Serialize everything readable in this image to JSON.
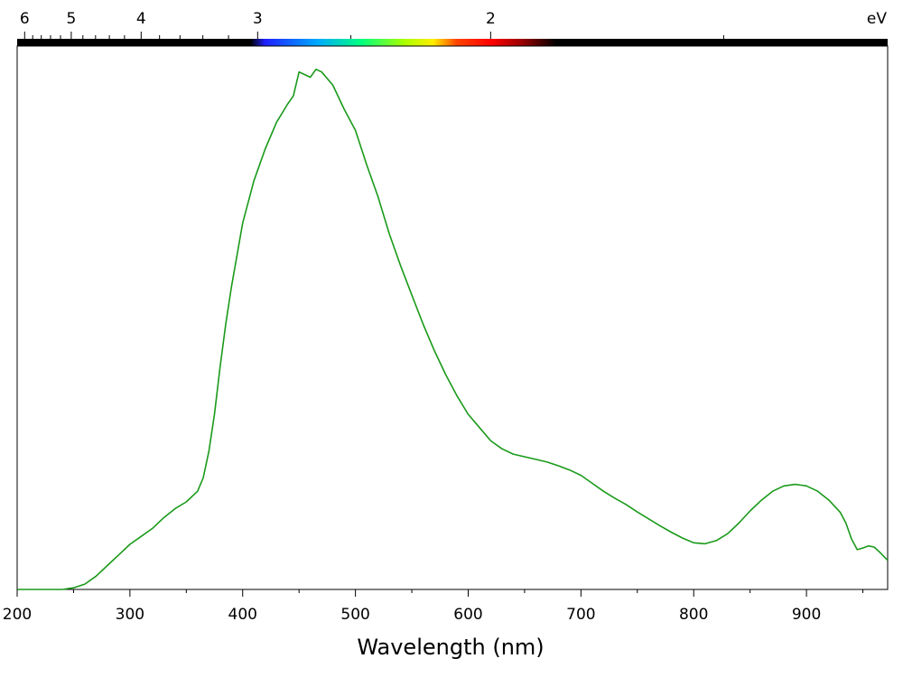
{
  "chart_data": {
    "type": "line",
    "title": "",
    "xlabel": "Wavelength (nm)",
    "ylabel": "",
    "xlim": [
      200,
      972
    ],
    "ylim": [
      0,
      1
    ],
    "grid": false,
    "legend": "none",
    "x_ticks": [
      200,
      300,
      400,
      500,
      600,
      700,
      800,
      900
    ],
    "x_tick_labels": [
      "200",
      "300",
      "400",
      "500",
      "600",
      "700",
      "800",
      "900"
    ],
    "top_axis": {
      "unit_label": "eV",
      "ticks": [
        6,
        5,
        4,
        3,
        2
      ],
      "tick_labels": [
        "6",
        "5",
        "4",
        "3",
        "2"
      ]
    },
    "series": [
      {
        "color": "#1a9a1a",
        "x": [
          200,
          240,
          250,
          260,
          270,
          280,
          290,
          300,
          310,
          320,
          330,
          340,
          350,
          360,
          365,
          370,
          375,
          380,
          385,
          390,
          395,
          400,
          410,
          420,
          430,
          440,
          445,
          450,
          455,
          460,
          465,
          470,
          480,
          490,
          500,
          510,
          520,
          530,
          540,
          550,
          560,
          570,
          580,
          590,
          600,
          610,
          620,
          630,
          640,
          650,
          660,
          670,
          680,
          690,
          700,
          710,
          720,
          730,
          740,
          750,
          760,
          770,
          780,
          790,
          800,
          810,
          820,
          830,
          840,
          850,
          860,
          870,
          880,
          890,
          900,
          910,
          920,
          930,
          935,
          940,
          945,
          950,
          955,
          960,
          965,
          972
        ],
        "y": [
          0.0,
          0.0,
          0.003,
          0.01,
          0.025,
          0.045,
          0.065,
          0.085,
          0.1,
          0.115,
          0.135,
          0.152,
          0.165,
          0.185,
          0.21,
          0.26,
          0.33,
          0.42,
          0.5,
          0.57,
          0.63,
          0.69,
          0.77,
          0.83,
          0.88,
          0.915,
          0.93,
          0.975,
          0.97,
          0.965,
          0.98,
          0.975,
          0.95,
          0.905,
          0.865,
          0.8,
          0.74,
          0.67,
          0.61,
          0.555,
          0.5,
          0.45,
          0.405,
          0.365,
          0.33,
          0.305,
          0.28,
          0.265,
          0.255,
          0.25,
          0.245,
          0.24,
          0.233,
          0.225,
          0.215,
          0.2,
          0.185,
          0.172,
          0.16,
          0.146,
          0.133,
          0.12,
          0.108,
          0.097,
          0.088,
          0.086,
          0.092,
          0.105,
          0.125,
          0.148,
          0.168,
          0.185,
          0.195,
          0.198,
          0.195,
          0.185,
          0.168,
          0.145,
          0.125,
          0.095,
          0.075,
          0.078,
          0.082,
          0.08,
          0.07,
          0.055
        ]
      }
    ]
  }
}
